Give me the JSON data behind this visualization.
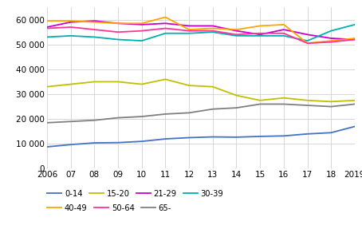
{
  "years": [
    2006,
    2007,
    2008,
    2009,
    2010,
    2011,
    2012,
    2013,
    2014,
    2015,
    2016,
    2017,
    2018,
    2019
  ],
  "series": {
    "0-14": [
      8800,
      9700,
      10400,
      10500,
      11000,
      12000,
      12500,
      12800,
      12700,
      13000,
      13200,
      14000,
      14500,
      17000
    ],
    "15-20": [
      33000,
      34000,
      35000,
      35000,
      34000,
      36000,
      33500,
      33000,
      29500,
      27500,
      28500,
      27500,
      27000,
      27500
    ],
    "21-29": [
      57000,
      59000,
      59500,
      58500,
      58000,
      58500,
      57500,
      57500,
      55500,
      54000,
      56000,
      54000,
      52500,
      52000
    ],
    "30-39": [
      53000,
      53500,
      53000,
      52000,
      51500,
      54500,
      54500,
      55000,
      53500,
      53500,
      53500,
      51500,
      55500,
      58000
    ],
    "40-49": [
      59500,
      59500,
      59000,
      58500,
      58500,
      61000,
      56000,
      56500,
      56000,
      57500,
      58000,
      50500,
      51500,
      52500
    ],
    "50-64": [
      56500,
      57000,
      56000,
      55000,
      55500,
      56500,
      55500,
      55500,
      54000,
      54500,
      54500,
      50500,
      51000,
      52000
    ],
    "65-": [
      18500,
      19000,
      19500,
      20500,
      21000,
      22000,
      22500,
      24000,
      24500,
      26000,
      26000,
      25500,
      25000,
      26000
    ]
  },
  "colors": {
    "0-14": "#4472c4",
    "15-20": "#c0c000",
    "21-29": "#cc00cc",
    "30-39": "#00b0b0",
    "40-49": "#ffa500",
    "50-64": "#ff3399",
    "65-": "#808080"
  },
  "ylim": [
    0,
    65000
  ],
  "yticks": [
    0,
    10000,
    20000,
    30000,
    40000,
    50000,
    60000
  ],
  "ytick_labels": [
    "0",
    "10 000",
    "20 000",
    "30 000",
    "40 000",
    "50 000",
    "60 000"
  ],
  "xtick_labels": [
    "2006",
    "07",
    "08",
    "09",
    "10",
    "11",
    "12",
    "13",
    "14",
    "15",
    "16",
    "17",
    "18",
    "2019"
  ],
  "legend_row1": [
    "0-14",
    "15-20",
    "21-29",
    "30-39"
  ],
  "legend_row2": [
    "40-49",
    "50-64",
    "65-"
  ],
  "grid_color": "#d0d0d0",
  "background_color": "#ffffff",
  "linewidth": 1.3
}
